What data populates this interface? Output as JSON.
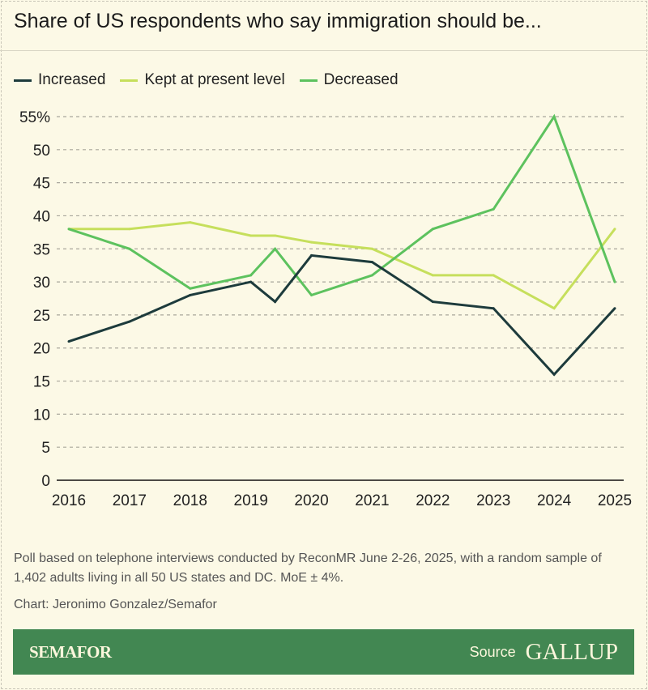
{
  "title": "Share of US respondents who say immigration should be...",
  "note": "Poll based on telephone interviews conducted by ReconMR June 2-26, 2025, with a random sample of 1,402 adults living in all 50 US states and DC. MoE ± 4%.",
  "credit": "Chart: Jeronimo Gonzalez/Semafor",
  "footer": {
    "brand": "SEMAFOR",
    "source_label": "Source",
    "source_logo": "GALLUP"
  },
  "chart_data": {
    "type": "line",
    "title": "Share of US respondents who say immigration should be...",
    "xlabel": "",
    "ylabel": "",
    "ylim": [
      0,
      55
    ],
    "xlim": [
      2016,
      2025
    ],
    "grid": "horizontal dotted",
    "legend": "top-left",
    "x": [
      2016,
      2017,
      2018,
      2019,
      2019.4,
      2020,
      2021,
      2022,
      2023,
      2024,
      2025
    ],
    "xticks": [
      "2016",
      "2017",
      "2018",
      "2019",
      "2020",
      "2021",
      "2022",
      "2023",
      "2024",
      "2025"
    ],
    "yticks": [
      "0",
      "5",
      "10",
      "15",
      "20",
      "25",
      "30",
      "35",
      "40",
      "45",
      "50",
      "55%"
    ],
    "series": [
      {
        "name": "Increased",
        "color": "#1d3b3c",
        "values": [
          21,
          24,
          28,
          30,
          27,
          34,
          33,
          27,
          26,
          16,
          26
        ]
      },
      {
        "name": "Kept at present level",
        "color": "#c6df5c",
        "values": [
          38,
          38,
          39,
          37,
          37,
          36,
          35,
          31,
          31,
          26,
          38
        ]
      },
      {
        "name": "Decreased",
        "color": "#5dc25e",
        "values": [
          38,
          35,
          29,
          31,
          35,
          28,
          31,
          38,
          41,
          55,
          30
        ]
      }
    ]
  }
}
